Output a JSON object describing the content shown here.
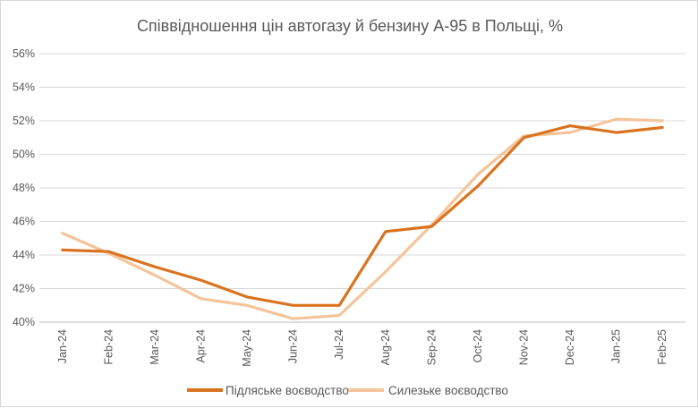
{
  "chart_data": {
    "type": "line",
    "title": "Співвідношення цін автогазу й бензину А-95 в Польщі, %",
    "categories": [
      "Jan-24",
      "Feb-24",
      "Mar-24",
      "Apr-24",
      "May-24",
      "Jun-24",
      "Jul-24",
      "Aug-24",
      "Sep-24",
      "Oct-24",
      "Nov-24",
      "Dec-24",
      "Jan-25",
      "Feb-25"
    ],
    "ylim": [
      40,
      56
    ],
    "yticks": [
      "40%",
      "42%",
      "44%",
      "46%",
      "48%",
      "50%",
      "52%",
      "54%",
      "56%"
    ],
    "ytick_values": [
      40,
      42,
      44,
      46,
      48,
      50,
      52,
      54,
      56
    ],
    "grid": true,
    "legend_position": "bottom",
    "series": [
      {
        "name": "Підляське воєводство",
        "color": "#d9731f",
        "values": [
          44.3,
          44.2,
          43.3,
          42.5,
          41.5,
          41.0,
          41.0,
          45.4,
          45.7,
          48.1,
          51.0,
          51.7,
          51.3,
          51.6
        ]
      },
      {
        "name": "Силезьке воєводство",
        "color": "#f4c49a",
        "values": [
          45.3,
          44.1,
          42.8,
          41.4,
          41.0,
          40.2,
          40.4,
          43.0,
          45.8,
          48.8,
          51.1,
          51.3,
          52.1,
          52.0
        ]
      }
    ]
  }
}
